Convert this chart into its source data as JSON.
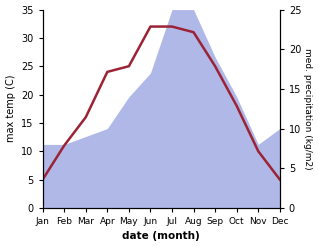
{
  "months": [
    "Jan",
    "Feb",
    "Mar",
    "Apr",
    "May",
    "Jun",
    "Jul",
    "Aug",
    "Sep",
    "Oct",
    "Nov",
    "Dec"
  ],
  "temperature": [
    5,
    11,
    16,
    24,
    25,
    32,
    32,
    31,
    25,
    18,
    10,
    5
  ],
  "precipitation_kg": [
    8,
    8,
    9,
    10,
    14,
    17,
    25,
    25,
    19,
    14,
    8,
    10
  ],
  "temp_color": "#9b2335",
  "precip_color": "#b0b8e8",
  "temp_ylim": [
    0,
    35
  ],
  "precip_ylim": [
    0,
    25
  ],
  "temp_yticks": [
    0,
    5,
    10,
    15,
    20,
    25,
    30,
    35
  ],
  "precip_yticks": [
    0,
    5,
    10,
    15,
    20,
    25
  ],
  "xlabel": "date (month)",
  "ylabel_left": "max temp (C)",
  "ylabel_right": "med. precipitation (kg/m2)",
  "bg_color": "#ffffff",
  "line_width": 1.8
}
